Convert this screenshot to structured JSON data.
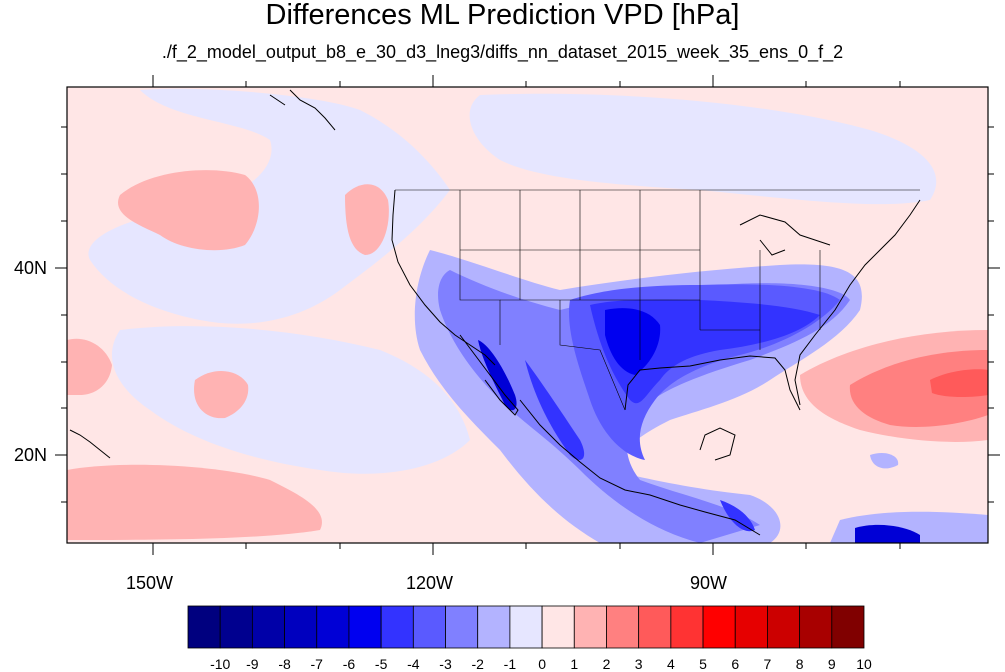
{
  "title": "Differences ML Prediction VPD [hPa]",
  "subtitle": "./f_2_model_output_b8_e_30_d3_lneg3/diffs_nn_dataset_2015_week_35_ens_0_f_2",
  "lat_labels": [
    "40N",
    "20N"
  ],
  "lon_labels": [
    "150W",
    "120W",
    "90W"
  ],
  "colorbar": {
    "labels": [
      "-10",
      "-9",
      "-8",
      "-7",
      "-6",
      "-5",
      "-4",
      "-3",
      "-2",
      "-1",
      "0",
      "1",
      "2",
      "3",
      "4",
      "5",
      "6",
      "7",
      "8",
      "9",
      "10"
    ],
    "colors": [
      "#00007f",
      "#00008f",
      "#0000a8",
      "#0000bf",
      "#0000d6",
      "#0000f0",
      "#3333ff",
      "#5a5aff",
      "#8080ff",
      "#b3b3ff",
      "#e6e6ff",
      "#ffe6e6",
      "#ffb3b3",
      "#ff8080",
      "#ff5a5a",
      "#ff3333",
      "#ff0000",
      "#e60000",
      "#cc0000",
      "#a80000",
      "#800000"
    ]
  },
  "colors": {
    "ocean_pos": "#ffe6e6",
    "land_neg": "#e6e6ff"
  }
}
